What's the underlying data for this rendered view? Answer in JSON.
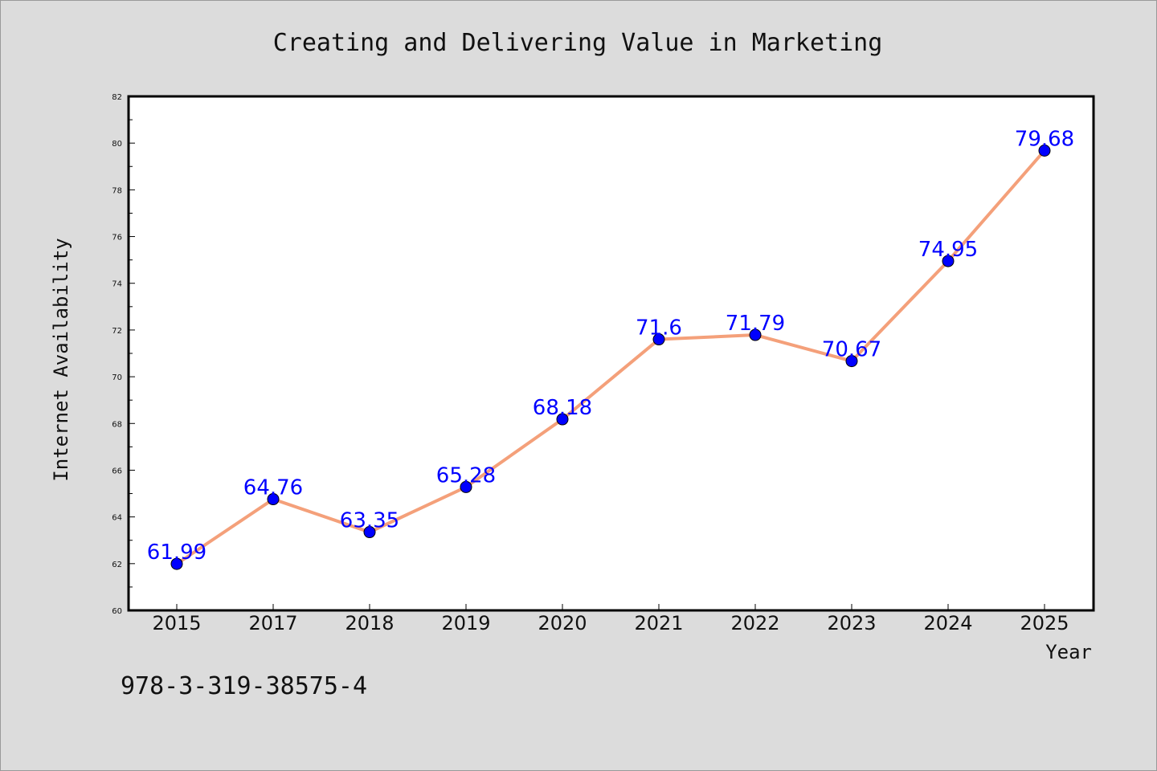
{
  "chart_data": {
    "type": "line",
    "title": "Creating and Delivering Value in Marketing",
    "xlabel": "Year",
    "ylabel": "Internet Availability",
    "categories": [
      "2015",
      "2017",
      "2018",
      "2019",
      "2020",
      "2021",
      "2022",
      "2023",
      "2024",
      "2025"
    ],
    "series": [
      {
        "values": [
          61.99,
          64.76,
          63.35,
          65.28,
          68.18,
          71.6,
          71.79,
          70.67,
          74.95,
          79.68
        ],
        "labels": [
          "61.99",
          "64.76",
          "63.35",
          "65.28",
          "68.18",
          "71.6",
          "71.79",
          "70.67",
          "74.95",
          "79.68"
        ],
        "line_color": "#f4a07a",
        "marker_color": "#0000ff"
      }
    ],
    "ylim": [
      60,
      82
    ],
    "yticks": [
      "60",
      "62",
      "64",
      "66",
      "68",
      "70",
      "72",
      "74",
      "76",
      "78",
      "80",
      "82"
    ],
    "grid": false,
    "legend": "none"
  },
  "footer": {
    "isbn": "978-3-319-38575-4"
  },
  "colors": {
    "background": "#dcdcdc",
    "plot_background": "#ffffff",
    "line": "#f4a07a",
    "marker": "#0000ff",
    "data_label": "#0000ff"
  }
}
